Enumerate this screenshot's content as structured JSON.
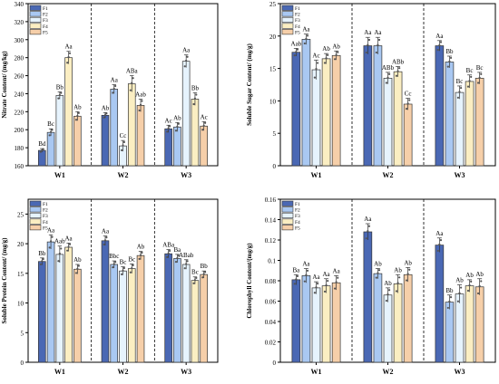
{
  "colors": {
    "F1": "#4a68b4",
    "F2": "#a9c8f2",
    "F3": "#e6f3fd",
    "F4": "#fbeec2",
    "F5": "#f6cfa9"
  },
  "legend_labels": [
    "F1",
    "F2",
    "F3",
    "F4",
    "F5"
  ],
  "chart_data": [
    {
      "type": "bar",
      "ylabel": "Nitrate Content/ (mg/kg)",
      "categories": [
        "W1",
        "W2",
        "W3"
      ],
      "ylim": [
        160,
        340
      ],
      "yticks": [
        160,
        180,
        200,
        220,
        240,
        260,
        280,
        300,
        320,
        340
      ],
      "grid": false,
      "legend": "top-left",
      "series": [
        {
          "name": "F1",
          "values": [
            177,
            216,
            201
          ],
          "errors": [
            2,
            3,
            4
          ],
          "labels": [
            "Bd",
            "Ab",
            "Ac"
          ]
        },
        {
          "name": "F2",
          "values": [
            197,
            245,
            203
          ],
          "errors": [
            4,
            5,
            5
          ],
          "labels": [
            "Bc",
            "Aa",
            "Ab"
          ]
        },
        {
          "name": "F3",
          "values": [
            238,
            182,
            276
          ],
          "errors": [
            4,
            6,
            7
          ],
          "labels": [
            "Bb",
            "Cc",
            "Aa"
          ]
        },
        {
          "name": "F4",
          "values": [
            280,
            251,
            234
          ],
          "errors": [
            7,
            9,
            7
          ],
          "labels": [
            "Aa",
            "ABa",
            "Bb"
          ]
        },
        {
          "name": "F5",
          "values": [
            215,
            227,
            204
          ],
          "errors": [
            5,
            7,
            5
          ],
          "labels": [
            "Ab",
            "Aab",
            "Ac"
          ]
        }
      ]
    },
    {
      "type": "bar",
      "ylabel": "Soluble Sugar Content/ (mg/g)",
      "categories": [
        "W1",
        "W2",
        "W3"
      ],
      "ylim": [
        0,
        25
      ],
      "yticks": [
        0,
        5,
        10,
        15,
        20,
        25
      ],
      "grid": false,
      "legend": "top-left",
      "series": [
        {
          "name": "F1",
          "values": [
            17.5,
            18.5,
            18.5
          ],
          "errors": [
            0.6,
            1.3,
            0.8
          ],
          "labels": [
            "Aab",
            "Aa",
            "Aa"
          ]
        },
        {
          "name": "F2",
          "values": [
            19.5,
            18.5,
            16.0
          ],
          "errors": [
            0.8,
            1.3,
            0.9
          ],
          "labels": [
            "Aa",
            "Aa",
            "Bb"
          ]
        },
        {
          "name": "F3",
          "values": [
            14.8,
            13.5,
            11.3
          ],
          "errors": [
            1.5,
            0.9,
            1.0
          ],
          "labels": [
            "Ac",
            "ABb",
            "Bc"
          ]
        },
        {
          "name": "F4",
          "values": [
            16.5,
            14.5,
            13.0
          ],
          "errors": [
            0.8,
            0.8,
            1.0
          ],
          "labels": [
            "Ab",
            "ABb",
            "Bc"
          ]
        },
        {
          "name": "F5",
          "values": [
            17.0,
            9.5,
            13.5
          ],
          "errors": [
            0.7,
            0.9,
            0.9
          ],
          "labels": [
            "Ab",
            "Cc",
            "Bc"
          ]
        }
      ]
    },
    {
      "type": "bar",
      "ylabel": "Soluble Protein Content/ (mg/g)",
      "categories": [
        "W1",
        "W2",
        "W3"
      ],
      "ylim": [
        0,
        27.5
      ],
      "yticks": [
        0,
        5,
        10,
        15,
        20,
        25
      ],
      "grid": false,
      "legend": "top-left",
      "series": [
        {
          "name": "F1",
          "values": [
            17.0,
            20.5,
            18.3
          ],
          "errors": [
            0.6,
            0.8,
            0.7
          ],
          "labels": [
            "Bb",
            "Aa",
            "ABa"
          ]
        },
        {
          "name": "F2",
          "values": [
            20.3,
            16.5,
            17.5
          ],
          "errors": [
            1.2,
            0.6,
            0.7
          ],
          "labels": [
            "Aa",
            "Bbc",
            "Ba"
          ]
        },
        {
          "name": "F3",
          "values": [
            18.2,
            15.4,
            16.5
          ],
          "errors": [
            1.4,
            0.7,
            0.8
          ],
          "labels": [
            "Aab",
            "Bc",
            "ABab"
          ]
        },
        {
          "name": "F4",
          "values": [
            19.4,
            15.8,
            13.8
          ],
          "errors": [
            0.7,
            0.8,
            0.6
          ],
          "labels": [
            "Aa",
            "Bc",
            "Bc"
          ]
        },
        {
          "name": "F5",
          "values": [
            15.7,
            18.0,
            14.8
          ],
          "errors": [
            0.8,
            0.7,
            0.6
          ],
          "labels": [
            "Ab",
            "Ab",
            "Bb"
          ]
        }
      ]
    },
    {
      "type": "bar",
      "ylabel": "Chlorophyll Content/(mg/g)",
      "categories": [
        "W1",
        "W2",
        "W3"
      ],
      "ylim": [
        0,
        0.16
      ],
      "yticks": [
        0,
        0.02,
        0.04,
        0.06,
        0.08,
        0.1,
        0.12,
        0.14,
        0.16
      ],
      "grid": false,
      "legend": "top-left",
      "series": [
        {
          "name": "F1",
          "values": [
            0.081,
            0.128,
            0.115
          ],
          "errors": [
            0.005,
            0.008,
            0.007
          ],
          "labels": [
            "Ba",
            "Aa",
            "Aa"
          ]
        },
        {
          "name": "F2",
          "values": [
            0.085,
            0.087,
            0.059
          ],
          "errors": [
            0.007,
            0.005,
            0.007
          ],
          "labels": [
            "Aa",
            "Ab",
            "Bb"
          ]
        },
        {
          "name": "F3",
          "values": [
            0.073,
            0.066,
            0.067
          ],
          "errors": [
            0.006,
            0.007,
            0.009
          ],
          "labels": [
            "Aa",
            "Ab",
            "Ab"
          ]
        },
        {
          "name": "F4",
          "values": [
            0.075,
            0.077,
            0.075
          ],
          "errors": [
            0.007,
            0.009,
            0.006
          ],
          "labels": [
            "Aa",
            "Ab",
            "Ab"
          ]
        },
        {
          "name": "F5",
          "values": [
            0.078,
            0.086,
            0.074
          ],
          "errors": [
            0.007,
            0.007,
            0.008
          ],
          "labels": [
            "Aa",
            "Ab",
            "Ab"
          ]
        }
      ]
    }
  ]
}
